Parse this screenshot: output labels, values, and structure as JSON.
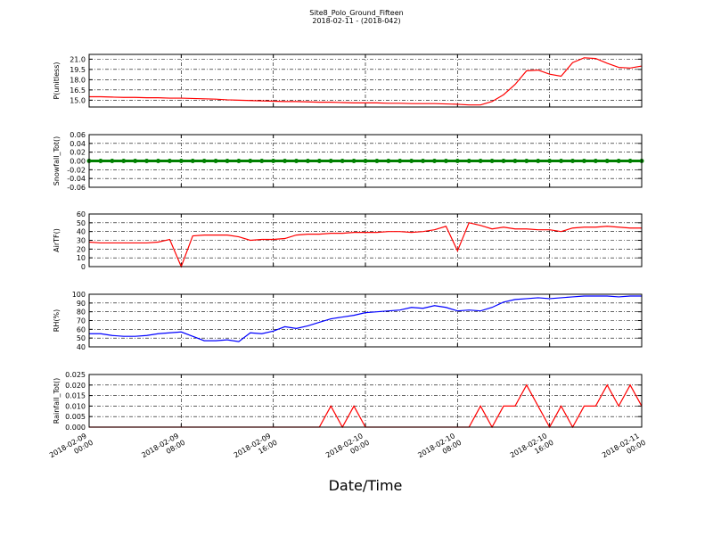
{
  "chart_data": {
    "type": "line",
    "title": "Site8_Polo_Ground_Fifteen",
    "subtitle": "2018-02-11 - (2018-042)",
    "xlabel": "Date/Time",
    "xlim": [
      "2018-02-09 00:00",
      "2018-02-11 00:00"
    ],
    "xticks": [
      "2018-02-09 00:00",
      "2018-02-09 08:00",
      "2018-02-09 16:00",
      "2018-02-10 00:00",
      "2018-02-10 08:00",
      "2018-02-10 16:00",
      "2018-02-11 00:00"
    ],
    "grid": true,
    "x": [
      "2018-02-09 00:00",
      "2018-02-09 01:00",
      "2018-02-09 02:00",
      "2018-02-09 03:00",
      "2018-02-09 04:00",
      "2018-02-09 05:00",
      "2018-02-09 06:00",
      "2018-02-09 07:00",
      "2018-02-09 08:00",
      "2018-02-09 09:00",
      "2018-02-09 10:00",
      "2018-02-09 11:00",
      "2018-02-09 12:00",
      "2018-02-09 13:00",
      "2018-02-09 14:00",
      "2018-02-09 15:00",
      "2018-02-09 16:00",
      "2018-02-09 17:00",
      "2018-02-09 18:00",
      "2018-02-09 19:00",
      "2018-02-09 20:00",
      "2018-02-09 21:00",
      "2018-02-09 22:00",
      "2018-02-09 23:00",
      "2018-02-10 00:00",
      "2018-02-10 01:00",
      "2018-02-10 02:00",
      "2018-02-10 03:00",
      "2018-02-10 04:00",
      "2018-02-10 05:00",
      "2018-02-10 06:00",
      "2018-02-10 07:00",
      "2018-02-10 08:00",
      "2018-02-10 09:00",
      "2018-02-10 10:00",
      "2018-02-10 11:00",
      "2018-02-10 12:00",
      "2018-02-10 13:00",
      "2018-02-10 14:00",
      "2018-02-10 15:00",
      "2018-02-10 16:00",
      "2018-02-10 17:00",
      "2018-02-10 18:00",
      "2018-02-10 19:00",
      "2018-02-10 20:00",
      "2018-02-10 21:00",
      "2018-02-10 22:00",
      "2018-02-10 23:00",
      "2018-02-11 00:00"
    ],
    "panels": [
      {
        "ylabel": "P(unitless)",
        "ylim": [
          14.0,
          21.7
        ],
        "yticks": [
          {
            "value": 15,
            "label": "15.0"
          },
          {
            "value": 16.5,
            "label": "16.5"
          },
          {
            "value": 18,
            "label": "18.0"
          },
          {
            "value": 19.5,
            "label": "19.5"
          },
          {
            "value": 21,
            "label": "21.0"
          }
        ],
        "series": [
          {
            "color": "#ff0000",
            "values": [
              15.5,
              15.5,
              15.45,
              15.4,
              15.4,
              15.35,
              15.35,
              15.3,
              15.3,
              15.25,
              15.2,
              15.15,
              15.05,
              15.0,
              14.95,
              14.9,
              14.85,
              14.8,
              14.8,
              14.75,
              14.7,
              14.7,
              14.65,
              14.6,
              14.6,
              14.6,
              14.55,
              14.55,
              14.5,
              14.5,
              14.5,
              14.45,
              14.4,
              14.3,
              14.3,
              14.8,
              15.8,
              17.3,
              19.3,
              19.4,
              18.8,
              18.5,
              20.5,
              21.2,
              21.1,
              20.4,
              19.8,
              19.7,
              20.0
            ]
          }
        ]
      },
      {
        "ylabel": "Snowfall_Tot()",
        "ylim": [
          -0.06,
          0.06
        ],
        "yticks": [
          -0.06,
          -0.04,
          -0.02,
          {
            "value": 0,
            "label": "0.00"
          },
          0.02,
          0.04,
          0.06
        ],
        "series": [
          {
            "color": "#008000",
            "marker": true,
            "values": [
              0,
              0,
              0,
              0,
              0,
              0,
              0,
              0,
              0,
              0,
              0,
              0,
              0,
              0,
              0,
              0,
              0,
              0,
              0,
              0,
              0,
              0,
              0,
              0,
              0,
              0,
              0,
              0,
              0,
              0,
              0,
              0,
              0,
              0,
              0,
              0,
              0,
              0,
              0,
              0,
              0,
              0,
              0,
              0,
              0,
              0,
              0,
              0,
              0
            ]
          }
        ]
      },
      {
        "ylabel": "AirTF()",
        "ylim": [
          0,
          60
        ],
        "yticks": [
          0,
          10,
          20,
          30,
          40,
          50,
          60
        ],
        "series": [
          {
            "color": "#ff0000",
            "values": [
              28,
              27,
              27,
              27,
              27,
              27,
              28,
              31,
              0,
              35,
              36,
              36,
              36,
              34,
              30,
              31,
              31,
              32,
              36,
              37,
              37,
              38,
              38,
              39,
              39,
              39,
              40,
              40,
              39,
              40,
              42,
              46,
              18,
              50,
              47,
              43,
              45,
              43,
              43,
              42,
              42,
              40,
              44,
              45,
              45,
              46,
              45,
              44,
              44
            ]
          }
        ]
      },
      {
        "ylabel": "RH(%)",
        "ylim": [
          40,
          100
        ],
        "yticks": [
          40,
          50,
          60,
          70,
          80,
          90,
          100
        ],
        "series": [
          {
            "color": "#0000ff",
            "values": [
              55,
              55,
              53,
              52,
              52,
              53,
              55,
              56,
              57,
              52,
              47,
              47,
              48,
              46,
              56,
              55,
              58,
              63,
              61,
              64,
              68,
              72,
              74,
              76,
              79,
              80,
              81,
              82,
              85,
              84,
              87,
              85,
              81,
              82,
              81,
              85,
              91,
              94,
              95,
              96,
              95,
              96,
              97,
              98,
              98,
              98,
              97,
              98,
              98
            ]
          }
        ]
      },
      {
        "ylabel": "Rainfall_Tot()",
        "ylim": [
          0,
          0.025
        ],
        "yticks": [
          {
            "value": 0,
            "label": "0.000"
          },
          0.005,
          {
            "value": 0.01,
            "label": "0.010"
          },
          0.015,
          {
            "value": 0.02,
            "label": "0.020"
          },
          0.025
        ],
        "series": [
          {
            "color": "#ff0000",
            "values": [
              0,
              0,
              0,
              0,
              0,
              0,
              0,
              0,
              0,
              0,
              0,
              0,
              0,
              0,
              0,
              0,
              0,
              0,
              0,
              0,
              0,
              0.01,
              0,
              0.01,
              0,
              0,
              0,
              0,
              0,
              0,
              0,
              0,
              0,
              0,
              0.01,
              0,
              0.01,
              0.01,
              0.02,
              0.01,
              0,
              0.01,
              0,
              0.01,
              0.01,
              0.02,
              0.01,
              0.02,
              0.01
            ]
          }
        ]
      }
    ]
  }
}
